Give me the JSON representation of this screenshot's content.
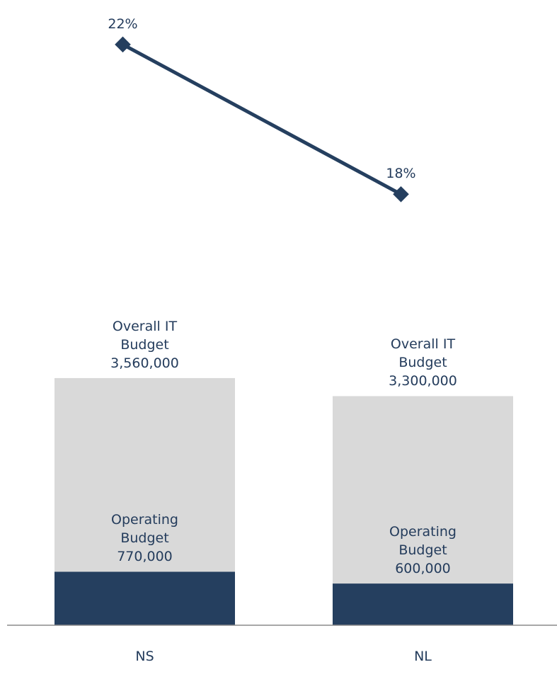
{
  "chart_data": {
    "type": "bar",
    "categories": [
      "NS",
      "NL"
    ],
    "series": [
      {
        "name": "Overall IT Budget",
        "color": "#d9d9d9",
        "values": [
          3560000,
          3300000
        ],
        "value_labels": [
          "3,560,000",
          "3,300,000"
        ]
      },
      {
        "name": "Operating Budget",
        "color": "#253f5f",
        "values": [
          770000,
          600000
        ],
        "value_labels": [
          "770,000",
          "600,000"
        ]
      },
      {
        "type": "line",
        "color": "#253f5f",
        "values": [
          22,
          18
        ],
        "value_labels": [
          "22%",
          "18%"
        ],
        "axis": "y2"
      }
    ],
    "ylim": [
      0,
      3600000
    ],
    "y2lim": [
      16,
      23
    ]
  }
}
